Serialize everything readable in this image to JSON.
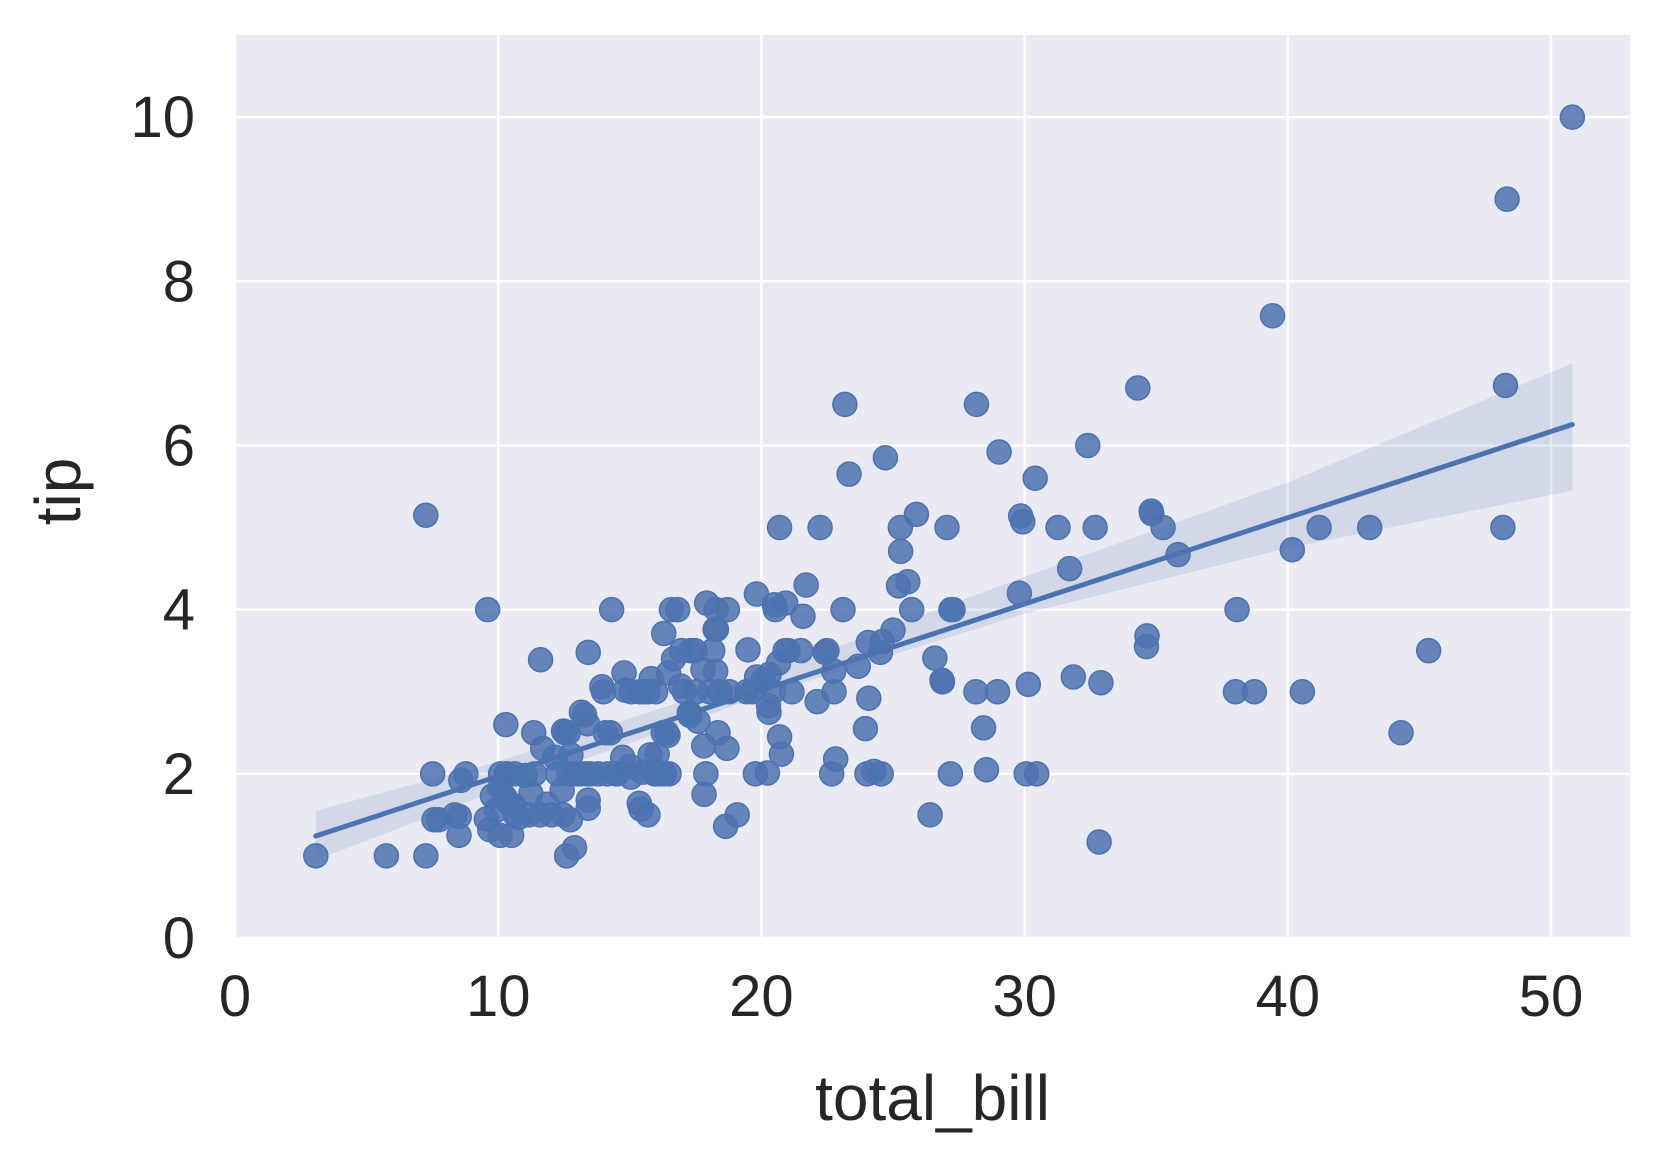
{
  "chart_data": {
    "type": "scatter",
    "title": "",
    "xlabel": "total_bill",
    "ylabel": "tip",
    "xlim": [
      0,
      53
    ],
    "ylim": [
      0,
      11
    ],
    "x_ticks": [
      0,
      10,
      20,
      30,
      40,
      50
    ],
    "y_ticks": [
      0,
      2,
      4,
      6,
      8,
      10
    ],
    "grid": true,
    "legend": "none",
    "colors": {
      "background": "#eaeaf2",
      "grid": "#ffffff",
      "points": "#4c72b0",
      "line": "#4c72b0",
      "band": "#4c72b0"
    },
    "regression": {
      "type": "linear",
      "x_range": [
        3.07,
        50.81
      ],
      "intercept": 0.92,
      "slope": 0.105
    },
    "confidence_band": [
      {
        "x": 3.07,
        "lower": 0.95,
        "upper": 1.55
      },
      {
        "x": 10,
        "lower": 1.8,
        "upper": 2.15
      },
      {
        "x": 20,
        "lower": 2.95,
        "upper": 3.2
      },
      {
        "x": 30,
        "lower": 3.95,
        "upper": 4.4
      },
      {
        "x": 40,
        "lower": 4.75,
        "upper": 5.55
      },
      {
        "x": 50.81,
        "lower": 5.45,
        "upper": 7.0
      }
    ],
    "points": [
      [
        3.07,
        1.0
      ],
      [
        5.75,
        1.0
      ],
      [
        7.25,
        1.0
      ],
      [
        7.25,
        5.15
      ],
      [
        7.51,
        2.0
      ],
      [
        7.56,
        1.44
      ],
      [
        7.74,
        1.44
      ],
      [
        8.35,
        1.5
      ],
      [
        8.51,
        1.25
      ],
      [
        8.52,
        1.48
      ],
      [
        8.58,
        1.92
      ],
      [
        8.77,
        2.0
      ],
      [
        9.55,
        1.45
      ],
      [
        9.6,
        4.0
      ],
      [
        9.68,
        1.32
      ],
      [
        9.78,
        1.73
      ],
      [
        9.94,
        1.56
      ],
      [
        10.07,
        1.83
      ],
      [
        10.07,
        1.25
      ],
      [
        10.09,
        2.0
      ],
      [
        10.27,
        1.71
      ],
      [
        10.29,
        2.6
      ],
      [
        10.33,
        1.67
      ],
      [
        10.33,
        2.0
      ],
      [
        10.34,
        1.66
      ],
      [
        10.34,
        2.0
      ],
      [
        10.51,
        1.25
      ],
      [
        10.59,
        1.61
      ],
      [
        10.63,
        2.0
      ],
      [
        10.65,
        1.5
      ],
      [
        10.77,
        1.47
      ],
      [
        11.02,
        1.98
      ],
      [
        11.17,
        1.5
      ],
      [
        11.24,
        1.76
      ],
      [
        11.35,
        2.5
      ],
      [
        11.38,
        2.0
      ],
      [
        11.59,
        1.5
      ],
      [
        11.61,
        3.39
      ],
      [
        11.69,
        2.31
      ],
      [
        11.87,
        1.63
      ],
      [
        12.03,
        1.5
      ],
      [
        12.16,
        2.2
      ],
      [
        12.26,
        2.0
      ],
      [
        12.43,
        1.8
      ],
      [
        12.46,
        1.5
      ],
      [
        12.48,
        2.52
      ],
      [
        12.54,
        2.5
      ],
      [
        12.6,
        1.0
      ],
      [
        12.66,
        2.5
      ],
      [
        12.69,
        2.0
      ],
      [
        12.74,
        1.44
      ],
      [
        12.76,
        2.23
      ],
      [
        12.9,
        1.1
      ],
      [
        13.0,
        2.0
      ],
      [
        13.03,
        2.0
      ],
      [
        13.13,
        2.0
      ],
      [
        13.16,
        2.75
      ],
      [
        13.28,
        2.72
      ],
      [
        13.37,
        2.0
      ],
      [
        13.39,
        2.61
      ],
      [
        13.42,
        1.58
      ],
      [
        13.42,
        3.48
      ],
      [
        13.42,
        1.68
      ],
      [
        13.51,
        2.0
      ],
      [
        13.81,
        2.0
      ],
      [
        13.94,
        3.06
      ],
      [
        14.0,
        3.0
      ],
      [
        14.07,
        2.5
      ],
      [
        14.15,
        2.0
      ],
      [
        14.26,
        2.5
      ],
      [
        14.31,
        4.0
      ],
      [
        14.48,
        2.0
      ],
      [
        14.52,
        2.0
      ],
      [
        14.73,
        2.2
      ],
      [
        14.78,
        3.23
      ],
      [
        14.83,
        3.02
      ],
      [
        15.01,
        2.09
      ],
      [
        15.04,
        1.96
      ],
      [
        15.06,
        3.0
      ],
      [
        15.36,
        1.64
      ],
      [
        15.38,
        3.0
      ],
      [
        15.42,
        1.57
      ],
      [
        15.48,
        2.02
      ],
      [
        15.53,
        3.0
      ],
      [
        15.69,
        3.0
      ],
      [
        15.69,
        1.5
      ],
      [
        15.77,
        2.23
      ],
      [
        15.81,
        3.16
      ],
      [
        15.95,
        2.0
      ],
      [
        15.98,
        2.03
      ],
      [
        15.98,
        3.0
      ],
      [
        16.0,
        2.0
      ],
      [
        16.04,
        2.24
      ],
      [
        16.21,
        2.0
      ],
      [
        16.27,
        2.5
      ],
      [
        16.29,
        3.71
      ],
      [
        16.31,
        2.0
      ],
      [
        16.4,
        2.5
      ],
      [
        16.45,
        2.47
      ],
      [
        16.47,
        3.23
      ],
      [
        16.49,
        2.0
      ],
      [
        16.58,
        4.0
      ],
      [
        16.66,
        3.4
      ],
      [
        16.82,
        4.0
      ],
      [
        16.93,
        3.07
      ],
      [
        16.97,
        3.5
      ],
      [
        17.07,
        3.0
      ],
      [
        17.26,
        2.74
      ],
      [
        17.29,
        2.71
      ],
      [
        17.31,
        3.5
      ],
      [
        17.47,
        3.5
      ],
      [
        17.51,
        3.0
      ],
      [
        17.59,
        2.64
      ],
      [
        17.78,
        3.27
      ],
      [
        17.81,
        2.34
      ],
      [
        17.82,
        1.75
      ],
      [
        17.89,
        2.0
      ],
      [
        17.92,
        4.08
      ],
      [
        18.04,
        3.0
      ],
      [
        18.15,
        3.5
      ],
      [
        18.24,
        3.76
      ],
      [
        18.26,
        3.25
      ],
      [
        18.28,
        4.0
      ],
      [
        18.29,
        3.76
      ],
      [
        18.35,
        2.5
      ],
      [
        18.43,
        3.0
      ],
      [
        18.64,
        1.36
      ],
      [
        18.69,
        2.31
      ],
      [
        18.71,
        4.0
      ],
      [
        18.78,
        3.0
      ],
      [
        19.08,
        1.5
      ],
      [
        19.44,
        3.0
      ],
      [
        19.49,
        3.51
      ],
      [
        19.65,
        3.0
      ],
      [
        19.77,
        2.0
      ],
      [
        19.81,
        4.19
      ],
      [
        19.82,
        3.18
      ],
      [
        20.08,
        3.15
      ],
      [
        20.23,
        2.01
      ],
      [
        20.27,
        2.83
      ],
      [
        20.29,
        2.75
      ],
      [
        20.29,
        3.21
      ],
      [
        20.45,
        3.0
      ],
      [
        20.49,
        4.06
      ],
      [
        20.53,
        4.0
      ],
      [
        20.65,
        3.35
      ],
      [
        20.69,
        2.45
      ],
      [
        20.69,
        5.0
      ],
      [
        20.76,
        2.24
      ],
      [
        20.9,
        3.5
      ],
      [
        20.92,
        4.08
      ],
      [
        21.01,
        3.5
      ],
      [
        21.16,
        3.0
      ],
      [
        21.5,
        3.5
      ],
      [
        21.58,
        3.92
      ],
      [
        21.7,
        4.3
      ],
      [
        22.12,
        2.88
      ],
      [
        22.23,
        5.0
      ],
      [
        22.42,
        3.48
      ],
      [
        22.49,
        3.5
      ],
      [
        22.67,
        2.0
      ],
      [
        22.75,
        3.25
      ],
      [
        22.76,
        3.0
      ],
      [
        22.82,
        2.18
      ],
      [
        23.1,
        4.0
      ],
      [
        23.17,
        6.5
      ],
      [
        23.33,
        5.65
      ],
      [
        23.68,
        3.31
      ],
      [
        23.95,
        2.55
      ],
      [
        24.01,
        2.0
      ],
      [
        24.06,
        3.6
      ],
      [
        24.08,
        2.92
      ],
      [
        24.27,
        2.03
      ],
      [
        24.52,
        3.48
      ],
      [
        24.55,
        2.0
      ],
      [
        24.59,
        3.61
      ],
      [
        24.71,
        5.85
      ],
      [
        25.0,
        3.75
      ],
      [
        25.21,
        4.29
      ],
      [
        25.28,
        5.0
      ],
      [
        25.29,
        4.71
      ],
      [
        25.56,
        4.34
      ],
      [
        25.71,
        4.0
      ],
      [
        25.89,
        5.16
      ],
      [
        26.41,
        1.5
      ],
      [
        26.59,
        3.41
      ],
      [
        26.86,
        3.14
      ],
      [
        26.88,
        3.12
      ],
      [
        27.05,
        5.0
      ],
      [
        27.18,
        2.0
      ],
      [
        27.2,
        4.0
      ],
      [
        27.28,
        4.0
      ],
      [
        28.15,
        3.0
      ],
      [
        28.17,
        6.5
      ],
      [
        28.44,
        2.56
      ],
      [
        28.55,
        2.05
      ],
      [
        28.97,
        3.0
      ],
      [
        29.03,
        5.92
      ],
      [
        29.8,
        4.2
      ],
      [
        29.85,
        5.14
      ],
      [
        29.93,
        5.07
      ],
      [
        30.06,
        2.0
      ],
      [
        30.14,
        3.09
      ],
      [
        30.4,
        5.6
      ],
      [
        30.46,
        2.0
      ],
      [
        31.27,
        5.0
      ],
      [
        31.71,
        4.5
      ],
      [
        31.85,
        3.18
      ],
      [
        32.4,
        6.0
      ],
      [
        32.68,
        5.0
      ],
      [
        32.83,
        1.17
      ],
      [
        32.9,
        3.11
      ],
      [
        34.3,
        6.7
      ],
      [
        34.63,
        3.55
      ],
      [
        34.65,
        3.68
      ],
      [
        34.81,
        5.2
      ],
      [
        34.83,
        5.17
      ],
      [
        35.26,
        5.0
      ],
      [
        35.83,
        4.67
      ],
      [
        38.01,
        3.0
      ],
      [
        38.07,
        4.0
      ],
      [
        38.73,
        3.0
      ],
      [
        39.42,
        7.58
      ],
      [
        40.17,
        4.73
      ],
      [
        40.55,
        3.0
      ],
      [
        41.19,
        5.0
      ],
      [
        43.11,
        5.0
      ],
      [
        44.3,
        2.5
      ],
      [
        45.35,
        3.5
      ],
      [
        48.17,
        5.0
      ],
      [
        48.27,
        6.73
      ],
      [
        48.33,
        9.0
      ],
      [
        50.81,
        10.0
      ]
    ]
  }
}
